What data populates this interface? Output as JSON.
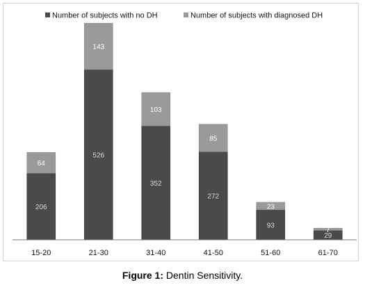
{
  "chart_data": {
    "type": "bar",
    "stacked": true,
    "categories": [
      "15-20",
      "21-30",
      "31-40",
      "41-50",
      "51-60",
      "61-70"
    ],
    "series": [
      {
        "name": "Number of subjects with no DH",
        "values": [
          206,
          526,
          352,
          272,
          93,
          29
        ],
        "color": "#4a4a4a"
      },
      {
        "name": "Number of subjects with diagnosed DH",
        "values": [
          64,
          143,
          103,
          85,
          23,
          7
        ],
        "color": "#9a9a9a"
      }
    ],
    "title": "",
    "xlabel": "",
    "ylabel": "",
    "ylim": [
      0,
      690
    ],
    "grid": false,
    "legend_position": "top"
  },
  "caption": {
    "label": "Figure 1:",
    "text": " Dentin Sensitivity."
  }
}
